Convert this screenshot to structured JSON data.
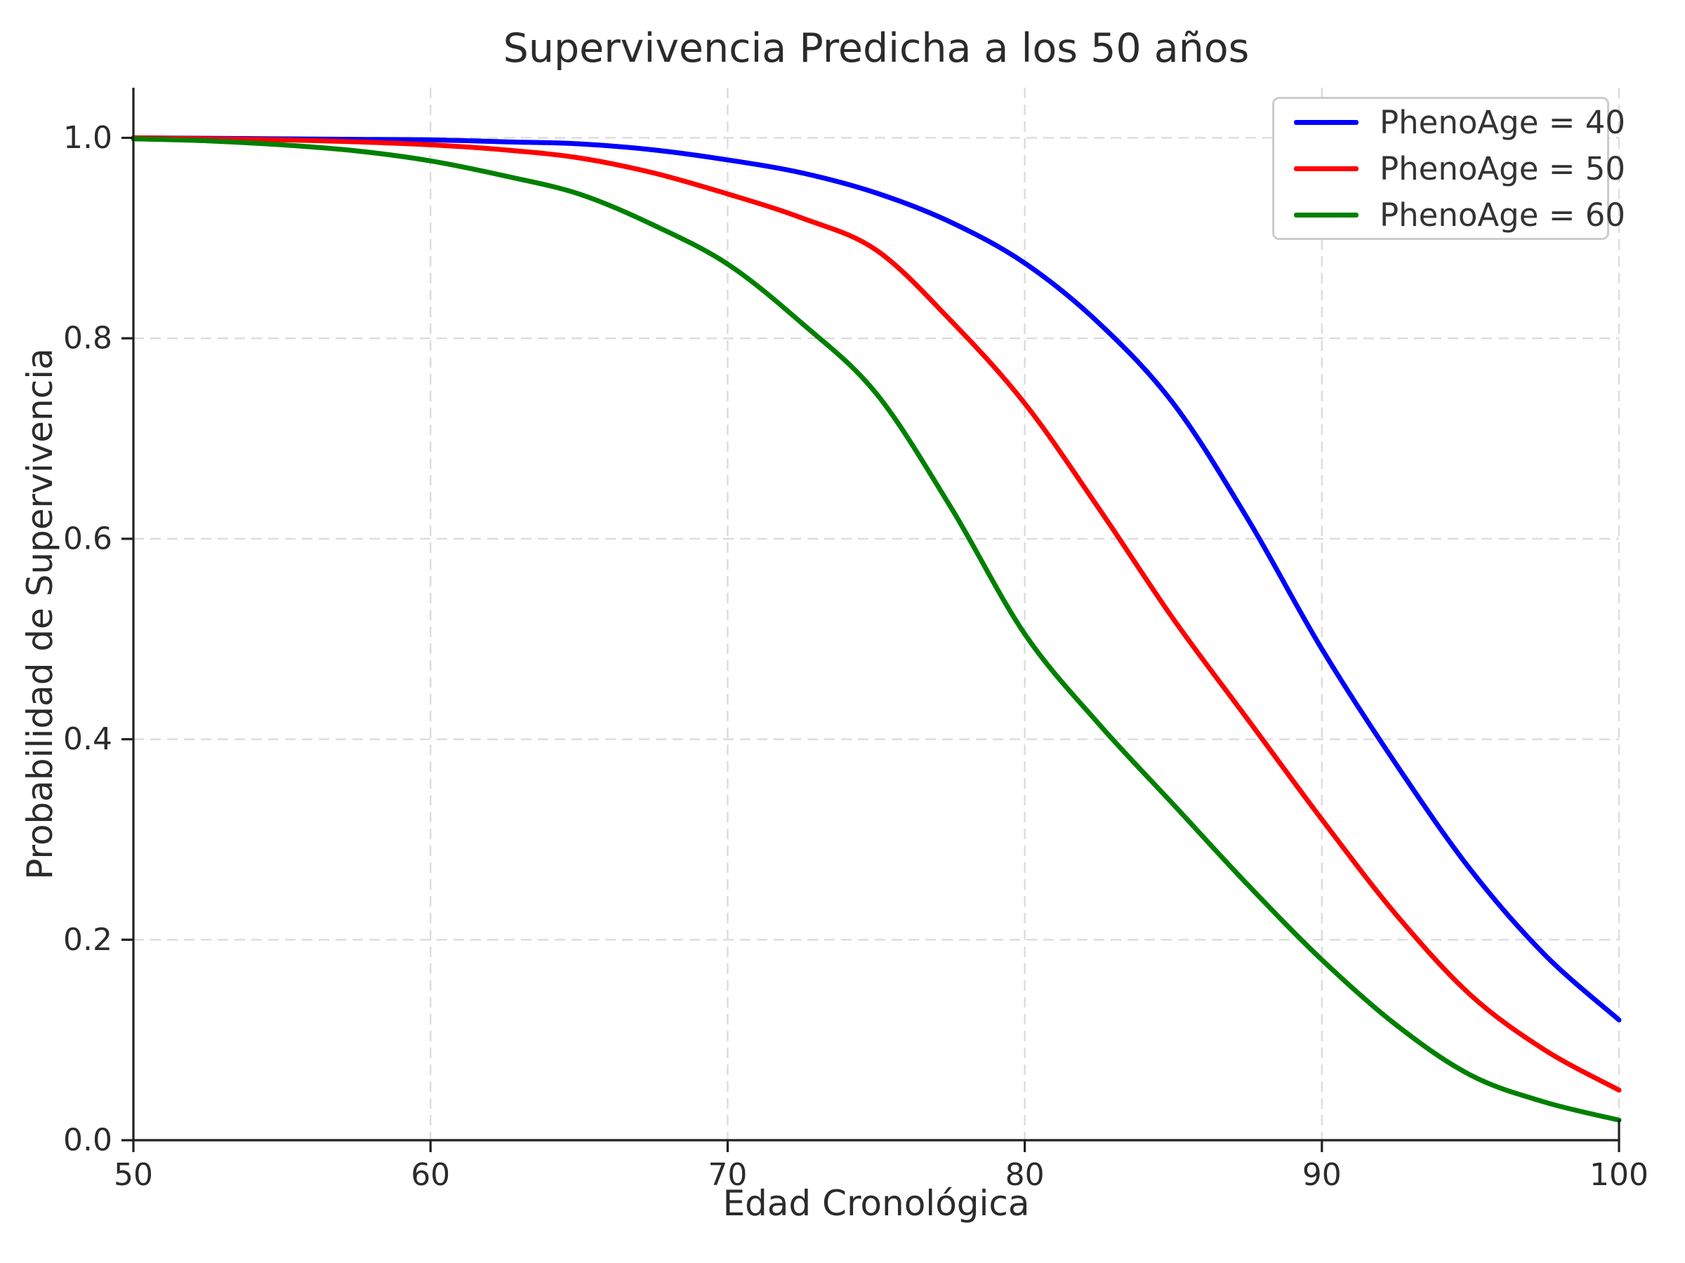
{
  "chart_data": {
    "type": "line",
    "title": "Supervivencia Predicha a los 50 años",
    "xlabel": "Edad Cronológica",
    "ylabel": "Probabilidad de Supervivencia",
    "x_range": [
      50,
      100
    ],
    "y_range": [
      0.0,
      1.0
    ],
    "x_ticks": [
      50,
      60,
      70,
      80,
      90,
      100
    ],
    "x_tick_labels": [
      "50",
      "60",
      "70",
      "80",
      "90",
      "100"
    ],
    "y_ticks": [
      0.0,
      0.2,
      0.4,
      0.6,
      0.8,
      1.0
    ],
    "y_tick_labels": [
      "0.0",
      "0.2",
      "0.4",
      "0.6",
      "0.8",
      "1.0"
    ],
    "grid": "dashed",
    "grid_color": "#dcdcdc",
    "axis_color": "#202020",
    "text_color": "#2b2b2b",
    "legend_position": "upper right",
    "x": [
      50,
      52.5,
      55,
      57.5,
      60,
      62.5,
      65,
      67.5,
      70,
      72.5,
      75,
      77.5,
      80,
      82.5,
      85,
      87.5,
      90,
      92.5,
      95,
      97.5,
      100
    ],
    "series": [
      {
        "name": "PhenoAge = 40",
        "color": "#0000ff",
        "values": [
          1.0,
          0.9995,
          0.999,
          0.9985,
          0.998,
          0.996,
          0.994,
          0.988,
          0.978,
          0.965,
          0.945,
          0.916,
          0.875,
          0.815,
          0.735,
          0.62,
          0.49,
          0.375,
          0.27,
          0.185,
          0.12
        ]
      },
      {
        "name": "PhenoAge = 50",
        "color": "#ff0000",
        "values": [
          1.0,
          0.999,
          0.998,
          0.996,
          0.993,
          0.988,
          0.98,
          0.965,
          0.944,
          0.92,
          0.888,
          0.818,
          0.735,
          0.63,
          0.52,
          0.42,
          0.32,
          0.225,
          0.145,
          0.09,
          0.05
        ]
      },
      {
        "name": "PhenoAge = 60",
        "color": "#008000",
        "values": [
          0.999,
          0.997,
          0.993,
          0.987,
          0.977,
          0.962,
          0.944,
          0.913,
          0.874,
          0.815,
          0.745,
          0.632,
          0.505,
          0.415,
          0.335,
          0.255,
          0.18,
          0.115,
          0.065,
          0.038,
          0.02
        ]
      }
    ]
  }
}
